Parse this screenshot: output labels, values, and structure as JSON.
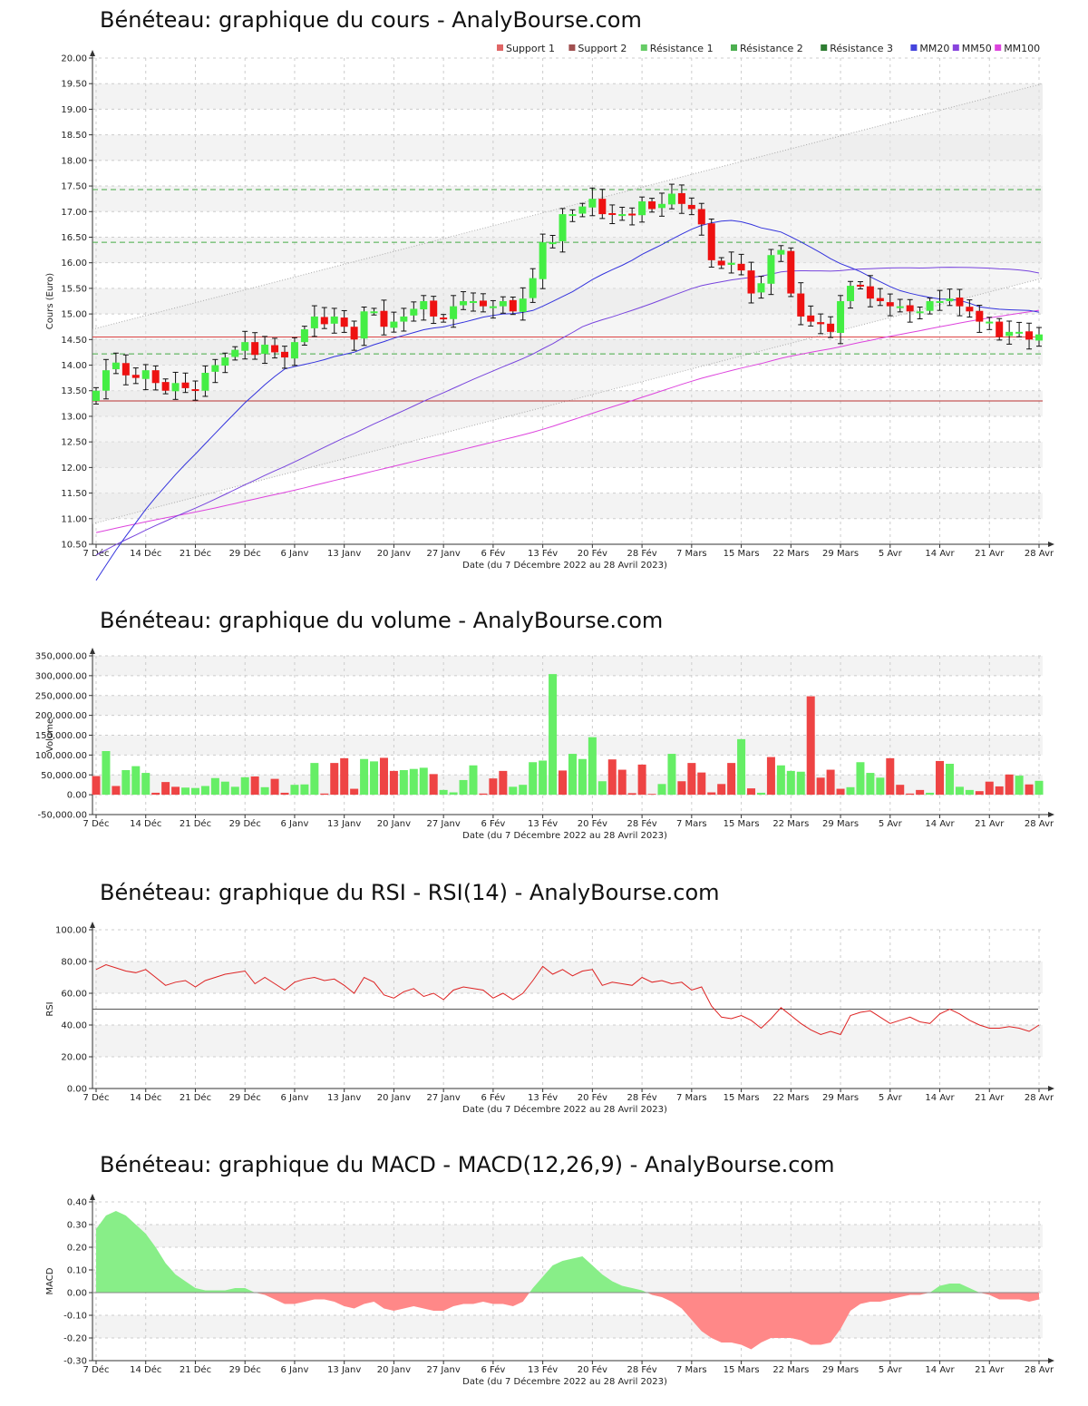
{
  "chart_data": [
    {
      "type": "candlestick",
      "title": "Bénéteau: graphique du cours - AnalyBourse.com",
      "xlabel": "Date (du 7 Décembre 2022 au 28 Avril 2023)",
      "ylabel": "Cours (Euro)",
      "ylim": [
        10.5,
        20.0
      ],
      "yticks": [
        "10.50",
        "11.00",
        "11.50",
        "12.00",
        "12.50",
        "13.00",
        "13.50",
        "14.00",
        "14.50",
        "15.00",
        "15.50",
        "16.00",
        "16.50",
        "17.00",
        "17.50",
        "18.00",
        "18.50",
        "19.00",
        "19.50",
        "20.00"
      ],
      "x_tick_labels": [
        "7 Déc",
        "14 Déc",
        "21 Déc",
        "29 Déc",
        "6 Janv",
        "13 Janv",
        "20 Janv",
        "27 Janv",
        "6 Fév",
        "13 Fév",
        "20 Fév",
        "28 Fév",
        "7 Mars",
        "15 Mars",
        "22 Mars",
        "29 Mars",
        "5 Avr",
        "14 Avr",
        "21 Avr",
        "28 Avr"
      ],
      "grid": true,
      "legend_position": "top-right",
      "legend": [
        {
          "name": "Support 1",
          "color": "#e06666"
        },
        {
          "name": "Support 2",
          "color": "#a05050"
        },
        {
          "name": "Résistance 1",
          "color": "#66cc66"
        },
        {
          "name": "Résistance 2",
          "color": "#4caf50"
        },
        {
          "name": "Résistance 3",
          "color": "#2e7d32"
        },
        {
          "name": "MM20",
          "color": "#4444dd"
        },
        {
          "name": "MM50",
          "color": "#8844dd"
        },
        {
          "name": "MM100",
          "color": "#dd44dd"
        }
      ],
      "levels": {
        "support_1": 14.55,
        "support_2": 13.3,
        "resistance_1": 14.22,
        "resistance_2": 16.4,
        "resistance_3": 17.43
      },
      "trend_channel": {
        "upper": [
          14.7,
          19.5
        ],
        "lower": [
          10.9,
          15.7
        ]
      },
      "close": [
        13.5,
        13.9,
        14.05,
        13.8,
        13.75,
        13.9,
        13.65,
        13.5,
        13.65,
        13.55,
        13.5,
        13.85,
        14.0,
        14.15,
        14.3,
        14.45,
        14.2,
        14.4,
        14.25,
        14.15,
        14.45,
        14.7,
        14.95,
        14.8,
        14.95,
        14.75,
        14.5,
        15.05,
        15.05,
        14.75,
        14.85,
        14.95,
        15.1,
        15.25,
        14.95,
        14.9,
        15.15,
        15.25,
        15.25,
        15.15,
        15.15,
        15.25,
        15.05,
        15.3,
        15.7,
        16.4,
        16.4,
        16.95,
        16.95,
        17.1,
        17.25,
        16.95,
        16.95,
        16.95,
        16.95,
        17.2,
        17.05,
        17.15,
        17.35,
        17.15,
        17.05,
        16.75,
        16.05,
        15.95,
        16.0,
        15.85,
        15.4,
        15.6,
        16.15,
        16.25,
        15.4,
        14.95,
        14.85,
        14.8,
        14.65,
        15.25,
        15.55,
        15.55,
        15.3,
        15.25,
        15.15,
        15.15,
        15.05,
        15.05,
        15.25,
        15.25,
        15.3,
        15.15,
        15.05,
        14.85,
        14.85,
        14.55,
        14.65,
        14.65,
        14.5,
        14.6
      ],
      "volume": [
        47000,
        110000,
        22000,
        62000,
        72000,
        55000,
        5000,
        32000,
        20000,
        18000,
        17000,
        22000,
        42000,
        33000,
        20000,
        44000,
        46000,
        19000,
        40000,
        5000,
        25000,
        26000,
        80000,
        3000,
        80000,
        92000,
        15000,
        90000,
        84000,
        93000,
        60000,
        62000,
        65000,
        68000,
        52000,
        12000,
        6000,
        37000,
        74000,
        3000,
        41000,
        60000,
        20000,
        25000,
        82000,
        86000,
        304000,
        61000,
        103000,
        90000,
        145000,
        34000,
        89000,
        63000,
        4000,
        76000,
        2000,
        27000,
        103000,
        34000,
        80000,
        56000,
        6000,
        27000,
        80000,
        140000,
        16000,
        5000,
        95000,
        74000,
        60000,
        58000,
        248000,
        43000,
        63000,
        15000,
        19000,
        82000,
        55000,
        43000,
        92000,
        25000,
        3000,
        12000,
        5000,
        85000,
        78000,
        20000,
        12000,
        9000,
        33000,
        21000,
        51000,
        48000,
        26000,
        35000
      ],
      "volume_color": [
        "r",
        "g",
        "r",
        "g",
        "g",
        "g",
        "r",
        "r",
        "r",
        "g",
        "g",
        "g",
        "g",
        "g",
        "g",
        "g",
        "r",
        "g",
        "r",
        "r",
        "g",
        "g",
        "g",
        "r",
        "r",
        "r",
        "r",
        "g",
        "g",
        "r",
        "r",
        "g",
        "g",
        "g",
        "r",
        "g",
        "g",
        "g",
        "g",
        "r",
        "r",
        "r",
        "g",
        "g",
        "g",
        "g",
        "g",
        "r",
        "g",
        "g",
        "g",
        "g",
        "r",
        "r",
        "r",
        "r",
        "r",
        "g",
        "g",
        "r",
        "r",
        "r",
        "r",
        "r",
        "r",
        "g",
        "r",
        "g",
        "r",
        "g",
        "g",
        "g",
        "r",
        "r",
        "r",
        "r",
        "g",
        "g",
        "g",
        "g",
        "r",
        "r",
        "r",
        "r",
        "g",
        "r",
        "g",
        "g",
        "g",
        "r",
        "r",
        "r",
        "r",
        "g",
        "r",
        "g"
      ],
      "volume_title": "Bénéteau: graphique du volume - AnalyBourse.com",
      "volume_ylabel": "Volume",
      "volume_ylim": [
        -50000,
        350000
      ],
      "volume_yticks": [
        "-50,000.00",
        "0.00",
        "50,000.00",
        "100,000.00",
        "150,000.00",
        "200,000.00",
        "250,000.00",
        "300,000.00",
        "350,000.00"
      ],
      "rsi_title": "Bénéteau: graphique du RSI - RSI(14) - AnalyBourse.com",
      "rsi_ylabel": "RSI",
      "rsi_ylim": [
        0,
        100
      ],
      "rsi_yticks": [
        "0.00",
        "20.00",
        "40.00",
        "60.00",
        "80.00",
        "100.00"
      ],
      "rsi": [
        75,
        78,
        76,
        74,
        73,
        75,
        70,
        65,
        67,
        68,
        64,
        68,
        70,
        72,
        73,
        74,
        66,
        70,
        66,
        62,
        67,
        69,
        70,
        68,
        69,
        65,
        60,
        70,
        67,
        59,
        57,
        61,
        63,
        58,
        60,
        56,
        62,
        64,
        63,
        62,
        57,
        60,
        56,
        60,
        68,
        77,
        72,
        75,
        71,
        74,
        75,
        65,
        67,
        66,
        65,
        70,
        67,
        68,
        66,
        67,
        62,
        64,
        52,
        45,
        44,
        46,
        43,
        38,
        44,
        51,
        46,
        41,
        37,
        34,
        36,
        34,
        46,
        48,
        49,
        45,
        41,
        43,
        45,
        42,
        41,
        47,
        50,
        47,
        43,
        40,
        38,
        38,
        39,
        38,
        36,
        40
      ],
      "macd_title": "Bénéteau: graphique du MACD - MACD(12,26,9) - AnalyBourse.com",
      "macd_ylabel": "MACD",
      "macd_ylim": [
        -0.3,
        0.4
      ],
      "macd_yticks": [
        "-0.30",
        "-0.20",
        "-0.10",
        "0.00",
        "0.10",
        "0.20",
        "0.30",
        "0.40"
      ],
      "macd": [
        0.28,
        0.34,
        0.36,
        0.34,
        0.3,
        0.26,
        0.2,
        0.13,
        0.08,
        0.05,
        0.02,
        0.01,
        0.01,
        0.01,
        0.02,
        0.02,
        0.0,
        -0.01,
        -0.03,
        -0.05,
        -0.05,
        -0.04,
        -0.03,
        -0.03,
        -0.04,
        -0.06,
        -0.07,
        -0.05,
        -0.04,
        -0.07,
        -0.08,
        -0.07,
        -0.06,
        -0.07,
        -0.08,
        -0.08,
        -0.06,
        -0.05,
        -0.05,
        -0.04,
        -0.05,
        -0.05,
        -0.06,
        -0.04,
        0.02,
        0.07,
        0.12,
        0.14,
        0.15,
        0.16,
        0.12,
        0.08,
        0.05,
        0.03,
        0.02,
        0.01,
        -0.01,
        -0.02,
        -0.04,
        -0.07,
        -0.12,
        -0.17,
        -0.2,
        -0.22,
        -0.22,
        -0.23,
        -0.25,
        -0.22,
        -0.2,
        -0.2,
        -0.2,
        -0.21,
        -0.23,
        -0.23,
        -0.22,
        -0.16,
        -0.08,
        -0.05,
        -0.04,
        -0.04,
        -0.03,
        -0.02,
        -0.01,
        -0.01,
        0.0,
        0.03,
        0.04,
        0.04,
        0.02,
        0.0,
        -0.01,
        -0.03,
        -0.03,
        -0.03,
        -0.04,
        -0.03
      ]
    }
  ]
}
